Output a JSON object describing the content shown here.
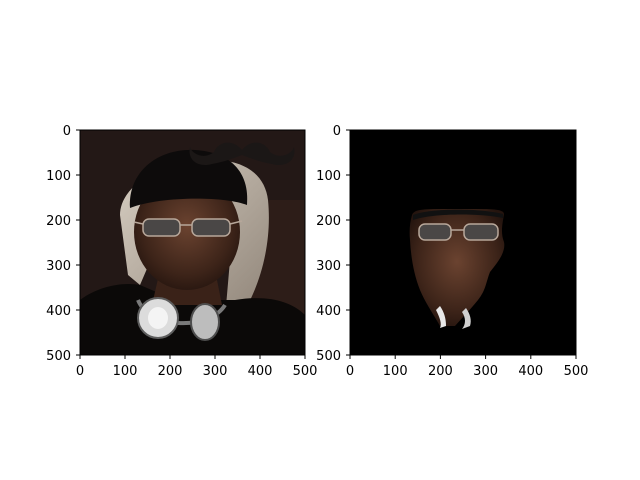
{
  "figure": {
    "background": "#ffffff"
  },
  "chart_data": [
    {
      "type": "image",
      "panel": "left",
      "content": "photo-with-mustache-overlay",
      "xlim": [
        0,
        500
      ],
      "ylim": [
        500,
        0
      ],
      "x_ticks": [
        0,
        100,
        200,
        300,
        400,
        500
      ],
      "y_ticks": [
        0,
        100,
        200,
        300,
        400,
        500
      ],
      "x_tick_labels": [
        "0",
        "100",
        "200",
        "300",
        "400",
        "500"
      ],
      "y_tick_labels": [
        "0",
        "100",
        "200",
        "300",
        "400",
        "500"
      ],
      "grid": false,
      "colors": {
        "background": "#231816",
        "hat": "#0d0b0b",
        "skin": "#4a2c20",
        "scarf": "#c9bcae",
        "shirt": "#0b0908",
        "headphones": "#d9d9d9",
        "mustache": "#1b1716"
      }
    },
    {
      "type": "image",
      "panel": "right",
      "content": "masked-face-on-black",
      "xlim": [
        0,
        500
      ],
      "ylim": [
        500,
        0
      ],
      "x_ticks": [
        0,
        100,
        200,
        300,
        400,
        500
      ],
      "y_ticks": [
        0,
        100,
        200,
        300,
        400,
        500
      ],
      "x_tick_labels": [
        "0",
        "100",
        "200",
        "300",
        "400",
        "500"
      ],
      "y_tick_labels": [
        "0",
        "100",
        "200",
        "300",
        "400",
        "500"
      ],
      "grid": false,
      "colors": {
        "background": "#000000",
        "skin": "#4a2c20",
        "sunglasses": "#5a5656"
      }
    }
  ]
}
